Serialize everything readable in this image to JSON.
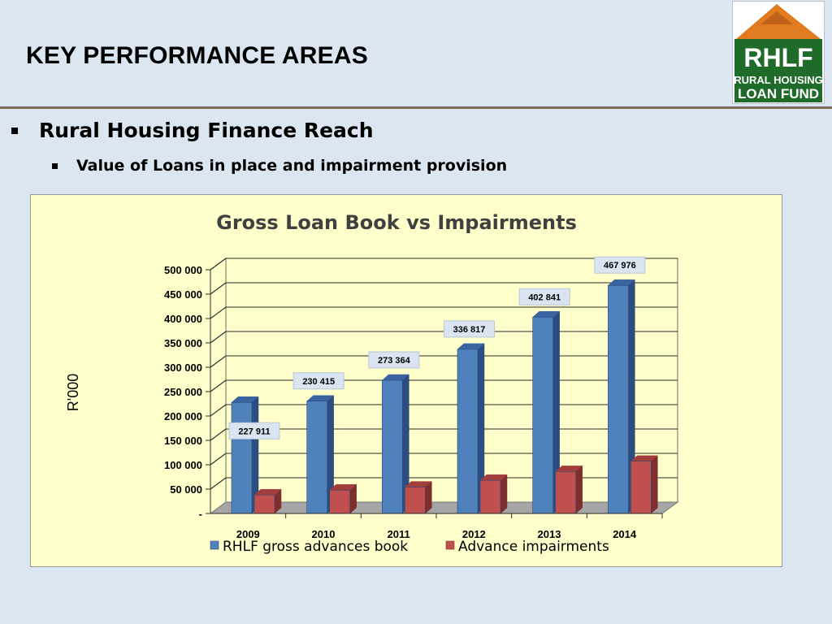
{
  "slide": {
    "title": "KEY PERFORMANCE AREAS",
    "bullet1": "Rural Housing Finance Reach",
    "bullet2": "Value of Loans in place and impairment provision"
  },
  "logo": {
    "line1": "RHLF",
    "line2": "RURAL HOUSING",
    "line3": "LOAN FUND"
  },
  "colors": {
    "series1": "#4f81bd",
    "series2": "#c0504d",
    "chart_background": "#ffffcc"
  },
  "chart_data": {
    "type": "bar",
    "title": "Gross Loan Book vs Impairments",
    "xlabel": "",
    "ylabel": "R'000",
    "categories": [
      "2009",
      "2010",
      "2011",
      "2012",
      "2013",
      "2014"
    ],
    "series": [
      {
        "name": "RHLF gross advances book",
        "values": [
          227911,
          230415,
          273364,
          336817,
          402841,
          467976
        ],
        "data_labels": [
          "227 911",
          "230 415",
          "273 364",
          "336 817",
          "402 841",
          "467 976"
        ]
      },
      {
        "name": "Advance impairments",
        "values": [
          38000,
          48000,
          54000,
          68000,
          86000,
          107000
        ]
      }
    ],
    "ylim": [
      0,
      500000
    ],
    "yticks": [
      "-",
      "50 000",
      "100 000",
      "150 000",
      "200 000",
      "250 000",
      "300 000",
      "350 000",
      "400 000",
      "450 000",
      "500 000"
    ],
    "grid": true,
    "legend": "bottom",
    "three_d": true
  }
}
